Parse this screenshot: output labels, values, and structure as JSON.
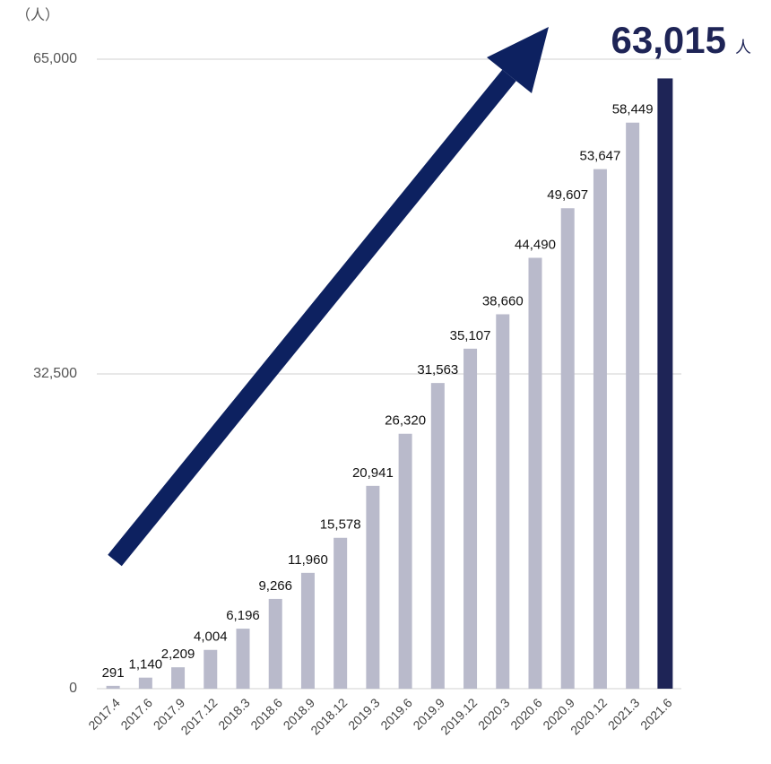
{
  "chart_data": {
    "type": "bar",
    "y_unit": "（人）",
    "categories": [
      "2017.4",
      "2017.6",
      "2017.9",
      "2017.12",
      "2018.3",
      "2018.6",
      "2018.9",
      "2018.12",
      "2019.3",
      "2019.6",
      "2019.9",
      "2019.12",
      "2020.3",
      "2020.6",
      "2020.9",
      "2020.12",
      "2021.3",
      "2021.6"
    ],
    "values": [
      291,
      1140,
      2209,
      4004,
      6196,
      9266,
      11960,
      15578,
      20941,
      26320,
      31563,
      35107,
      38660,
      44490,
      49607,
      53647,
      58449,
      63015
    ],
    "value_labels": [
      "291",
      "1,140",
      "2,209",
      "4,004",
      "6,196",
      "9,266",
      "11,960",
      "15,578",
      "20,941",
      "26,320",
      "31,563",
      "35,107",
      "38,660",
      "44,490",
      "49,607",
      "53,647",
      "58,449",
      "63,015"
    ],
    "value_label_unit": "人",
    "colors": [
      "#b9bacb",
      "#b9bacb",
      "#b9bacb",
      "#b9bacb",
      "#b9bacb",
      "#b9bacb",
      "#b9bacb",
      "#b9bacb",
      "#b9bacb",
      "#b9bacb",
      "#b9bacb",
      "#b9bacb",
      "#b9bacb",
      "#b9bacb",
      "#b9bacb",
      "#b9bacb",
      "#b9bacb",
      "#1e2456"
    ],
    "ylim": [
      0,
      65000
    ],
    "yticks": [
      0,
      {
        "value": 32500,
        "label": "32,500"
      },
      {
        "value": 65000,
        "label": "65,000"
      }
    ],
    "grid": true
  }
}
